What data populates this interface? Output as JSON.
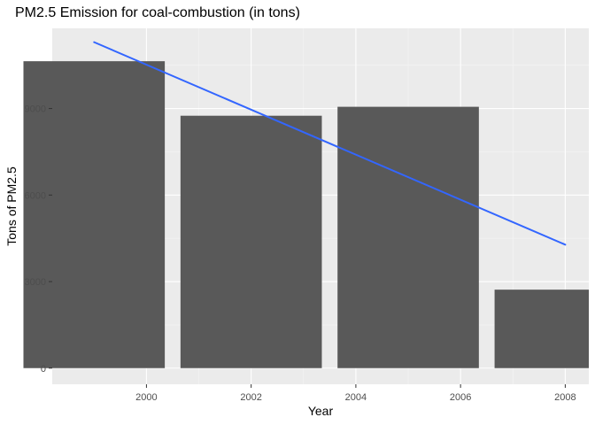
{
  "chart_data": {
    "type": "bar",
    "title": "PM2.5 Emission for coal-combustion (in tons)",
    "xlabel": "Year",
    "ylabel": "Tons of PM2.5",
    "x": [
      1999,
      2002,
      2005,
      2008
    ],
    "values": [
      10640,
      8750,
      9060,
      2720
    ],
    "xticks": [
      2000,
      2002,
      2004,
      2006,
      2008
    ],
    "yticks": [
      0,
      3000,
      6000,
      9000
    ],
    "xlim": [
      1998.2,
      2008.45
    ],
    "ylim": [
      -560,
      11780
    ],
    "bar_width_years": 2.7,
    "trend_line": {
      "x": [
        1999,
        2008
      ],
      "y": [
        11300,
        4280
      ]
    },
    "grid": true,
    "legend": "none",
    "colors": {
      "panel_background": "#ebebeb",
      "grid_major": "#ffffff",
      "grid_minor": "#f5f5f5",
      "bar_fill": "#595959",
      "trend_line": "#3366ff",
      "tick_text": "#4d4d4d",
      "tick_mark": "#333333"
    }
  }
}
